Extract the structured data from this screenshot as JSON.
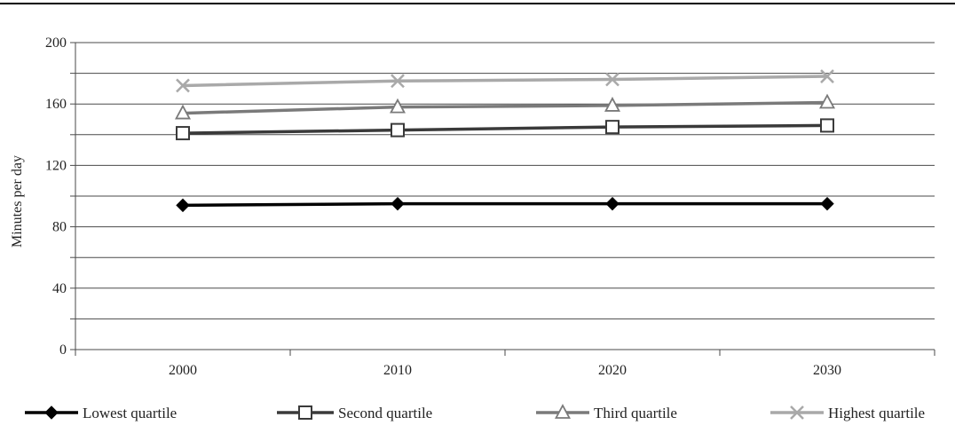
{
  "chart_data": {
    "type": "line",
    "title": "",
    "xlabel": "",
    "ylabel": "Minutes per day",
    "categories": [
      "2000",
      "2010",
      "2020",
      "2030"
    ],
    "ylim": [
      0,
      200
    ],
    "yticks": [
      0,
      40,
      80,
      120,
      160,
      200
    ],
    "grid": true,
    "legend_position": "bottom",
    "series": [
      {
        "name": "Lowest quartile",
        "values": [
          94,
          95,
          95,
          95
        ],
        "color": "#000000",
        "marker": "diamond"
      },
      {
        "name": "Second quartile",
        "values": [
          141,
          143,
          145,
          146
        ],
        "color": "#3a3a3a",
        "marker": "square"
      },
      {
        "name": "Third quartile",
        "values": [
          154,
          158,
          159,
          161
        ],
        "color": "#7a7a7a",
        "marker": "triangle"
      },
      {
        "name": "Highest quartile",
        "values": [
          172,
          175,
          176,
          178
        ],
        "color": "#a9a9a9",
        "marker": "x"
      }
    ]
  }
}
